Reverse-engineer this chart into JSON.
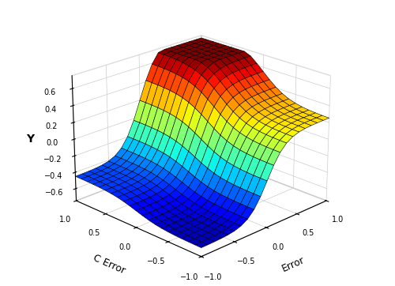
{
  "xlabel": "Error",
  "ylabel": "C Error",
  "zlabel": "Y",
  "xlim": [
    -1,
    1
  ],
  "ylim": [
    -1,
    1
  ],
  "zlim": [
    -0.75,
    0.75
  ],
  "zticks": [
    -0.6,
    -0.4,
    -0.2,
    0,
    0.2,
    0.4,
    0.6
  ],
  "xticks": [
    -1,
    -0.5,
    0,
    0.5,
    1
  ],
  "yticks": [
    -1,
    -0.5,
    0,
    0.5,
    1
  ],
  "elev": 22,
  "azim": -135,
  "n_points": 21
}
